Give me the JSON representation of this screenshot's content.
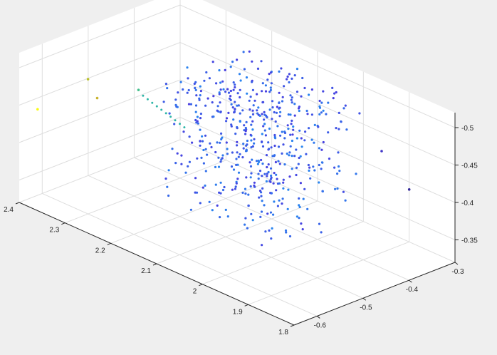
{
  "window": {
    "background": "#efefef"
  },
  "chart_data": {
    "type": "scatter",
    "dimensions": 3,
    "view": "3d-perspective",
    "title": "",
    "xlabel": "",
    "ylabel": "",
    "zlabel": "",
    "grid": true,
    "box": "partial",
    "colormap": "parula",
    "xlim": [
      1.8,
      2.4
    ],
    "ylim": [
      -0.65,
      -0.3
    ],
    "zlim": [
      -0.32,
      -0.52
    ],
    "xticks": [
      "1.8",
      "1.9",
      "2",
      "2.1",
      "2.2",
      "2.3",
      "2.4"
    ],
    "yticks": [
      "-0.6",
      "-0.5",
      "-0.4",
      "-0.3"
    ],
    "zticks": [
      "-0.35",
      "-0.4",
      "-0.45",
      "-0.5"
    ],
    "outliers": [
      {
        "x": 2.39,
        "y": -0.62,
        "z": -0.44,
        "color": "#f9fb0e"
      },
      {
        "x": 2.3,
        "y": -0.6,
        "z": -0.5,
        "color": "#b9c02a"
      },
      {
        "x": 2.3,
        "y": -0.58,
        "z": -0.47,
        "color": "#c9b32e"
      },
      {
        "x": 2.24,
        "y": -0.55,
        "z": -0.49,
        "color": "#46c08d"
      },
      {
        "x": 2.05,
        "y": -0.45,
        "z": -0.38,
        "color": "#3a6ef0"
      },
      {
        "x": 2.08,
        "y": -0.47,
        "z": -0.36,
        "color": "#3f5de6"
      },
      {
        "x": 1.95,
        "y": -0.31,
        "z": -0.43,
        "color": "#4237c8"
      },
      {
        "x": 1.9,
        "y": -0.3,
        "z": -0.39,
        "color": "#33289a"
      }
    ],
    "cloud": {
      "description_units": "points clustered near x≈2.0, y≈-0.45, z≈-0.42",
      "x_range": [
        1.95,
        2.2
      ],
      "y_range": [
        -0.55,
        -0.35
      ],
      "z_range": [
        -0.35,
        -0.52
      ],
      "color_range": [
        "#2a86f0",
        "#4a3ee0"
      ]
    }
  }
}
